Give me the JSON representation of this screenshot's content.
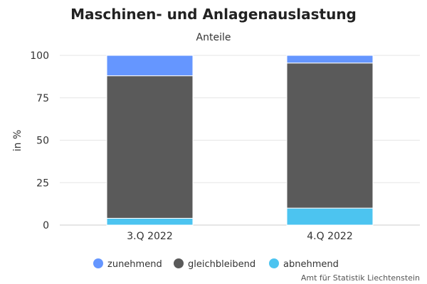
{
  "chart_data": {
    "type": "bar",
    "stacked": true,
    "title": "Maschinen- und Anlagenauslastung",
    "subtitle": "Anteile",
    "xlabel": "",
    "ylabel": "in %",
    "categories": [
      "3.Q 2022",
      "4.Q 2022"
    ],
    "ylim": [
      0,
      100
    ],
    "yticks": [
      0,
      25,
      50,
      75,
      100
    ],
    "grid": true,
    "legend_position": "bottom",
    "series": [
      {
        "name": "abnehmend",
        "values": [
          4,
          10
        ],
        "color": "#4cc4f0"
      },
      {
        "name": "gleichbleibend",
        "values": [
          84,
          85.5
        ],
        "color": "#5a5a5a"
      },
      {
        "name": "zunehmend",
        "values": [
          12,
          4.5
        ],
        "color": "#6596ff"
      }
    ],
    "legend_order": [
      "zunehmend",
      "gleichbleibend",
      "abnehmend"
    ]
  },
  "credit": "Amt für Statistik Liechtenstein"
}
